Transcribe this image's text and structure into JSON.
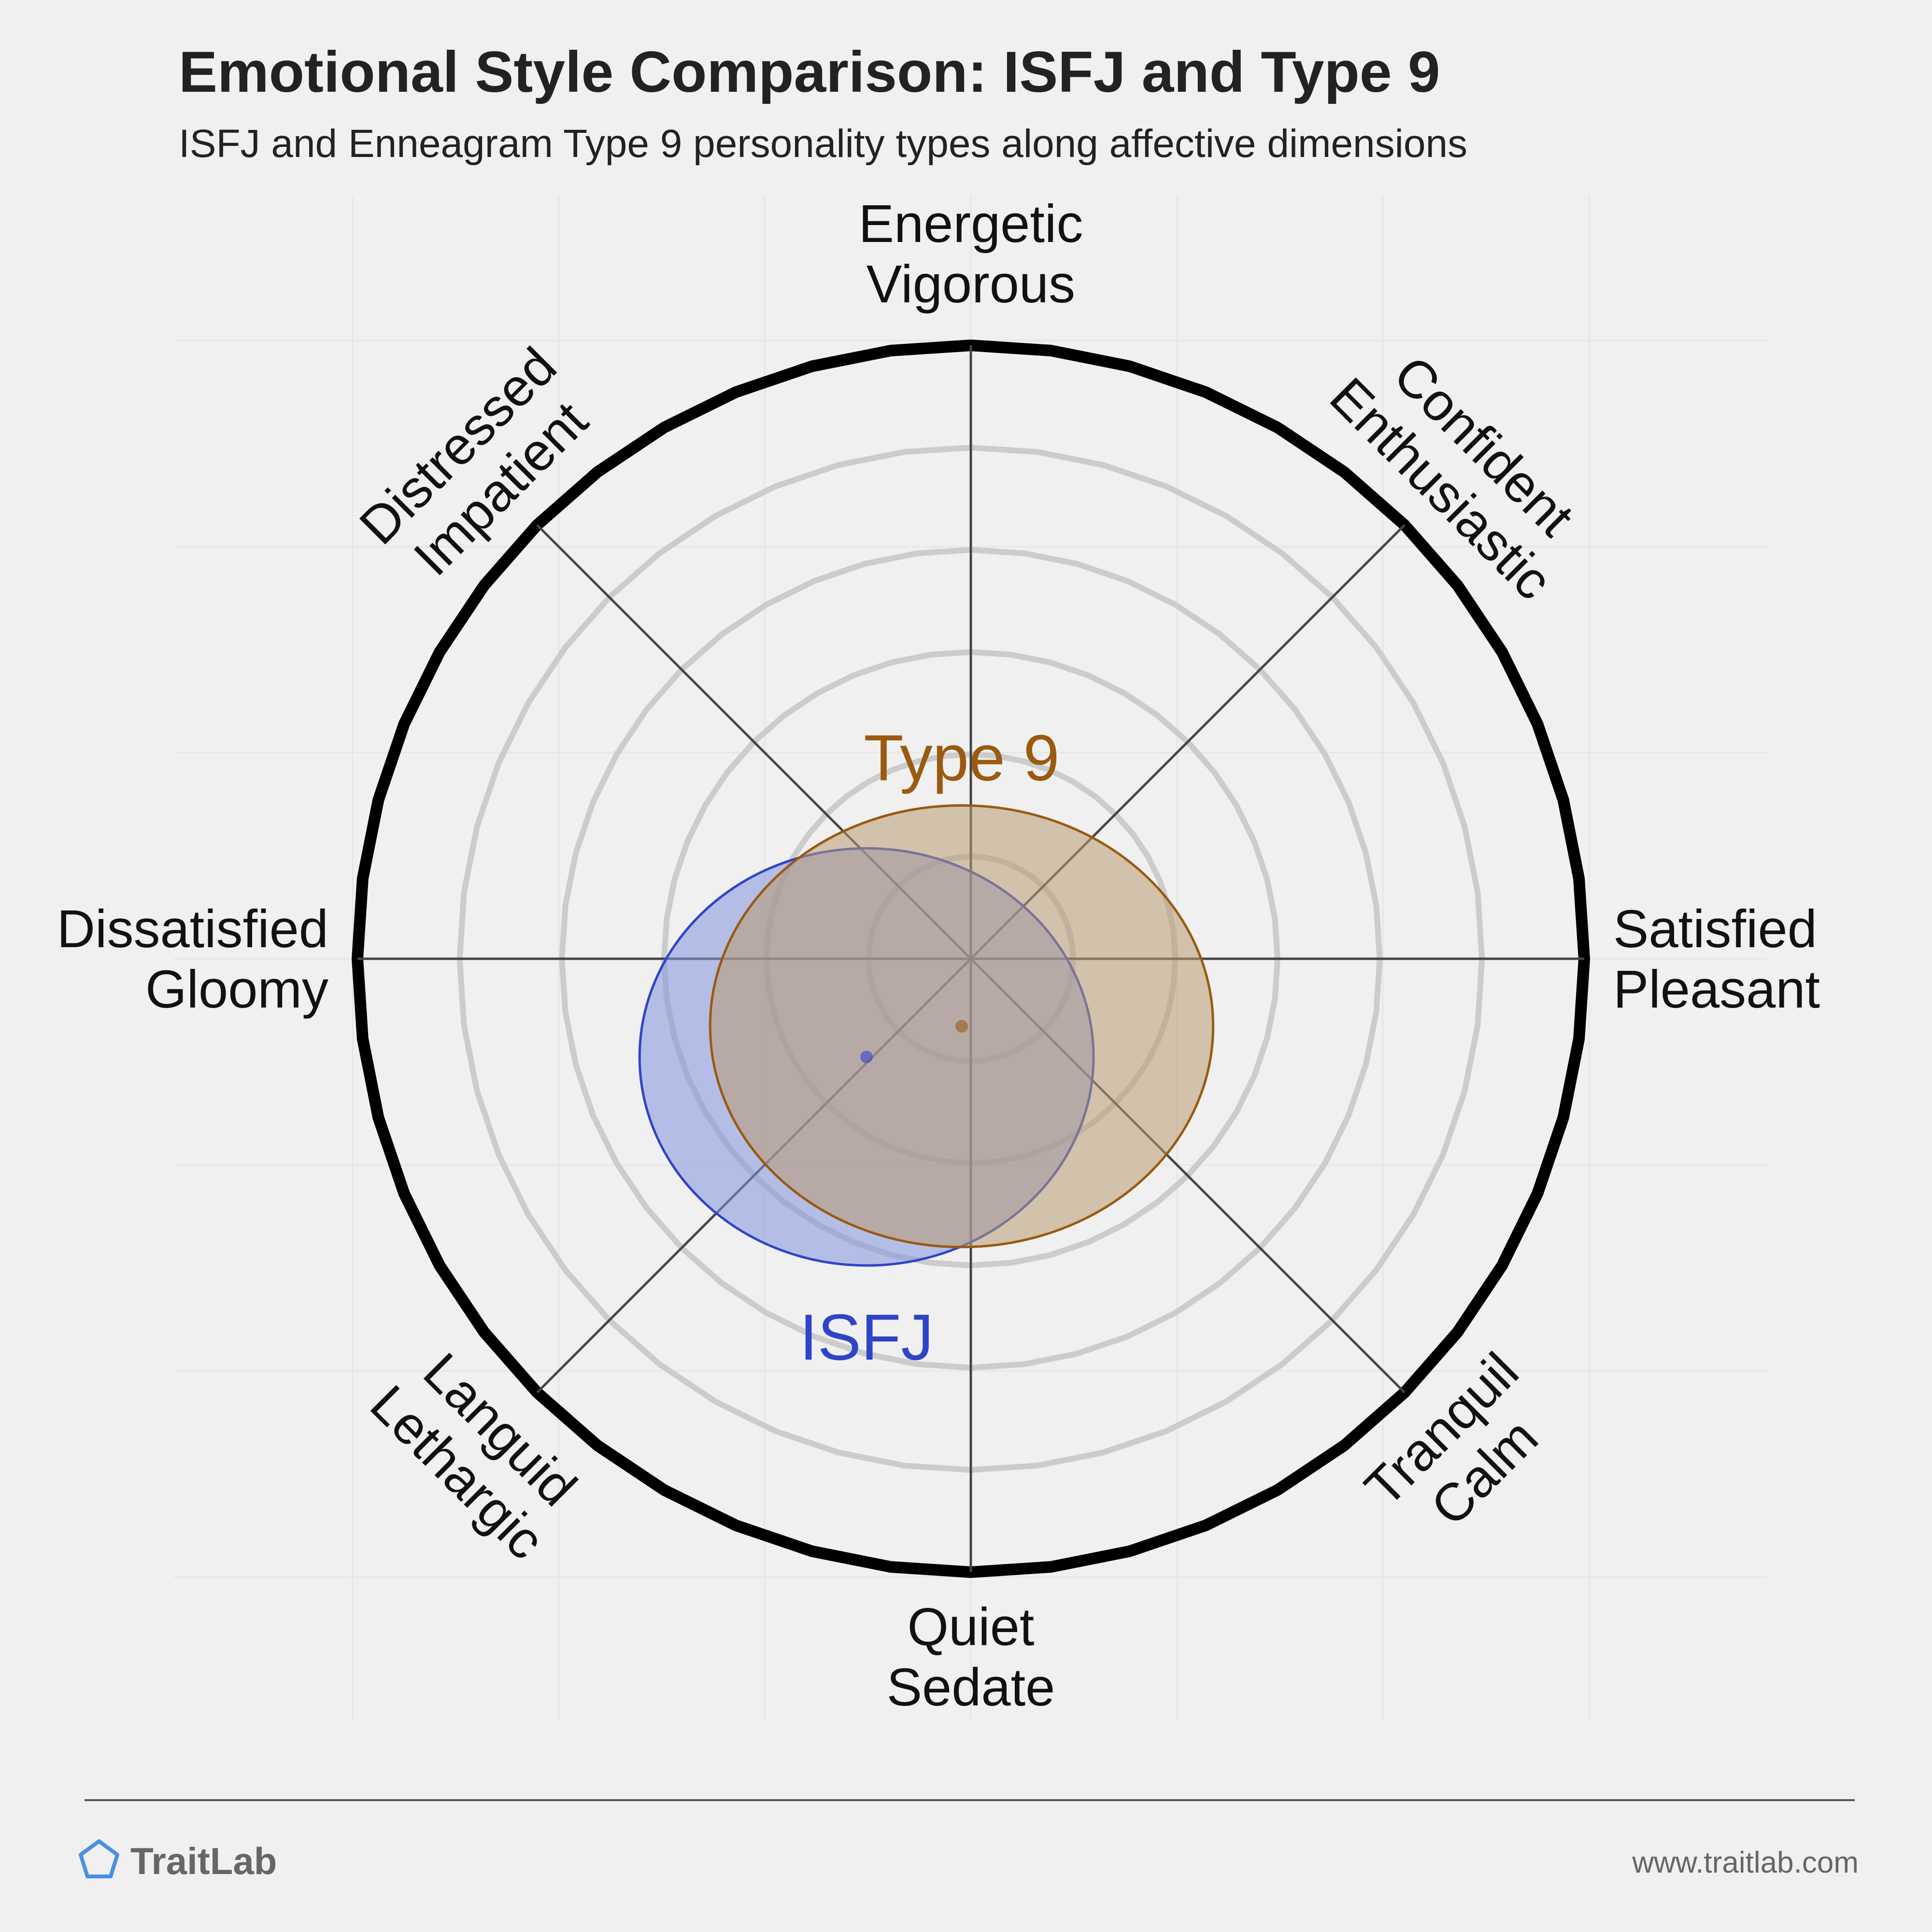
{
  "chart_data": {
    "type": "scatter",
    "title": "Emotional Style Comparison: ISFJ and Type 9",
    "subtitle": "ISFJ and Enneagram Type 9 personality types along affective dimensions",
    "axes": [
      {
        "id": "energetic",
        "lines": [
          "Energetic",
          "Vigorous"
        ]
      },
      {
        "id": "confident",
        "lines": [
          "Confident",
          "Enthusiastic"
        ]
      },
      {
        "id": "satisfied",
        "lines": [
          "Satisfied",
          "Pleasant"
        ]
      },
      {
        "id": "tranquil",
        "lines": [
          "Tranquil",
          "Calm"
        ]
      },
      {
        "id": "quiet",
        "lines": [
          "Quiet",
          "Sedate"
        ]
      },
      {
        "id": "languid",
        "lines": [
          "Languid",
          "Lethargic"
        ]
      },
      {
        "id": "dissatisfied",
        "lines": [
          "Dissatisfied",
          "Gloomy"
        ]
      },
      {
        "id": "distressed",
        "lines": [
          "Distressed",
          "Impatient"
        ]
      }
    ],
    "rings": 6,
    "range": [
      -1,
      1
    ],
    "grid": true,
    "series": [
      {
        "name": "ISFJ",
        "x": -0.17,
        "y": -0.16,
        "spread_x": 0.37,
        "spread_y": 0.34,
        "color": "#2e45c8",
        "fill": "#8393dd"
      },
      {
        "name": "Type 9",
        "x": -0.015,
        "y": -0.11,
        "spread_x": 0.41,
        "spread_y": 0.36,
        "color": "#9a5a10",
        "fill": "#b99a72"
      }
    ]
  },
  "footer": {
    "brand": "TraitLab",
    "url": "www.traitlab.com"
  },
  "colors": {
    "background": "#f0f0f0",
    "outer_ring": "#000000",
    "grid_ring": "#cccccc",
    "isfj": "#2e45c8",
    "type9": "#9a5a10",
    "logo": "#4a90e2"
  }
}
